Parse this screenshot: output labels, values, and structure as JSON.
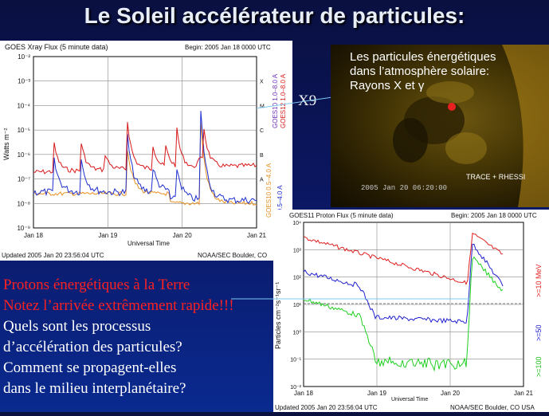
{
  "slide": {
    "title": "Le Soleil accélérateur de particules:",
    "x9_label": "X9"
  },
  "xray_chart": {
    "title": "GOES Xray Flux (5 minute data)",
    "begin": "Begin: 2005 Jan 18 0000 UTC",
    "ylabel": "Watts m⁻²",
    "xlabel": "Universal Time",
    "ticks_y": [
      "10⁻²",
      "10⁻³",
      "10⁻⁴",
      "10⁻⁵",
      "10⁻⁶",
      "10⁻⁷",
      "10⁻⁸",
      "10⁻⁹"
    ],
    "ticks_x": [
      "Jan 18",
      "Jan 19",
      "Jan 20",
      "Jan 21"
    ],
    "class_labels": [
      "X",
      "M",
      "C",
      "B",
      "A"
    ],
    "legend": [
      "GOES10 1.0–8.0 A",
      "GOES12 1.0–8.0 A",
      "GOES10 0.5–4.0 A",
      "2 0.5–4.0 A"
    ],
    "footer_left": "Updated 2005 Jan 20 23:56:04 UTC",
    "footer_right": "NOAA/SEC Boulder, CO",
    "colors": {
      "long": "#d81818",
      "short": "#1d2fd0",
      "orange": "#e89020"
    }
  },
  "sun_image": {
    "caption_line1": "Les particules énergétiques",
    "caption_line2": "dans l’atmosphère solaire:",
    "caption_line3": "Rayons X et γ",
    "timestamp": "2005 Jan 20 06:20:00",
    "instrument": "TRACE + RHESSI"
  },
  "proton_chart": {
    "title": "GOES11 Proton Flux (5 minute data)",
    "begin": "Begin: 2005 Jan 18 0000 UTC",
    "ylabel": "Particles cm⁻²s⁻¹sr⁻¹",
    "xlabel": "Universal Time",
    "ticks_y": [
      "10⁴",
      "10³",
      "10²",
      "10¹",
      "10⁰",
      "10⁻¹",
      "10⁻²"
    ],
    "ticks_x": [
      "Jan 18",
      "Jan 19",
      "Jan 20",
      "Jan 21"
    ],
    "legend": [
      ">=10 MeV",
      ">=50",
      ">=100"
    ],
    "footer_left": "Updated 2005 Jan 20 23:56:04 UTC",
    "footer_right": "NOAA/SEC Boulder, CO USA",
    "colors": {
      "p10": "#e02020",
      "p50": "#2020d0",
      "p100": "#20d020"
    }
  },
  "questions": {
    "line1": "Protons énergétiques à la Terre",
    "line2": "Notez l’arrivée extrêmement rapide!!!",
    "line3": "Quels sont les processus",
    "line4": "d’accélération des particules?",
    "line5": "Comment se propagent-elles",
    "line6": "dans le milieu interplanétaire?"
  }
}
